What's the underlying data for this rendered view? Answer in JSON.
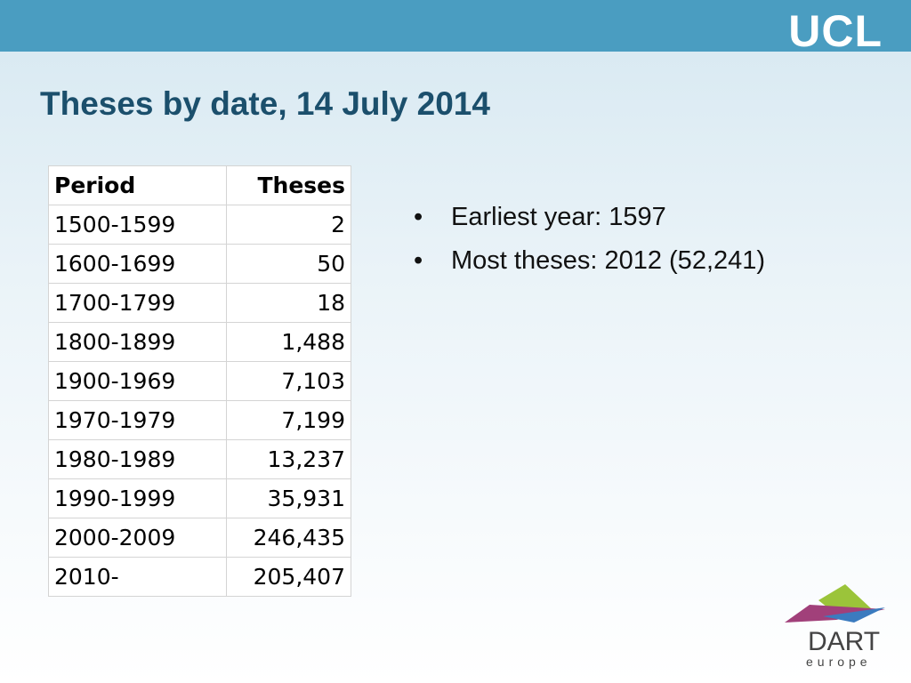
{
  "header": {
    "logo": "UCL"
  },
  "title": "Theses by date, 14 July 2014",
  "table": {
    "columns": [
      "Period",
      "Theses"
    ],
    "rows": [
      [
        "1500-1599",
        "2"
      ],
      [
        "1600-1699",
        "50"
      ],
      [
        "1700-1799",
        "18"
      ],
      [
        "1800-1899",
        "1,488"
      ],
      [
        "1900-1969",
        "7,103"
      ],
      [
        "1970-1979",
        "7,199"
      ],
      [
        "1980-1989",
        "13,237"
      ],
      [
        "1990-1999",
        "35,931"
      ],
      [
        "2000-2009",
        "246,435"
      ],
      [
        "2010-",
        "205,407"
      ]
    ]
  },
  "bullets": [
    "Earliest year: 1597",
    "Most theses:  2012 (52,241)"
  ],
  "footer": {
    "logo_top": "DART",
    "logo_bottom": "europe"
  }
}
